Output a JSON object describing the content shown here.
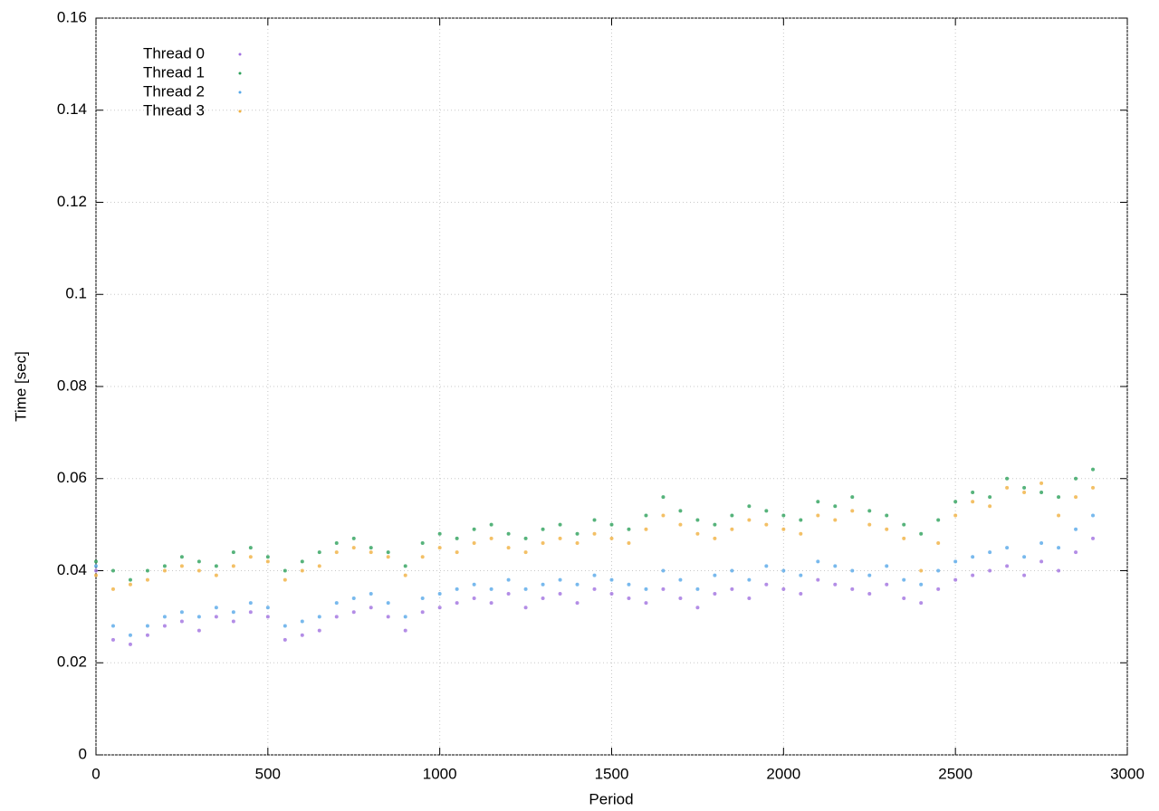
{
  "chart_data": {
    "type": "scatter",
    "xlabel": "Period",
    "ylabel": "Time [sec]",
    "xlim": [
      0,
      3000
    ],
    "ylim": [
      0,
      0.16
    ],
    "xticks": [
      0,
      500,
      1000,
      1500,
      2000,
      2500,
      3000
    ],
    "yticks": [
      0,
      0.02,
      0.04,
      0.06,
      0.08,
      0.1,
      0.12,
      0.14,
      0.16
    ],
    "grid": true,
    "legend": "upper left",
    "x": [
      0,
      50,
      100,
      150,
      200,
      250,
      300,
      350,
      400,
      450,
      500,
      550,
      600,
      650,
      700,
      750,
      800,
      850,
      900,
      950,
      1000,
      1050,
      1100,
      1150,
      1200,
      1250,
      1300,
      1350,
      1400,
      1450,
      1500,
      1550,
      1600,
      1650,
      1700,
      1750,
      1800,
      1850,
      1900,
      1950,
      2000,
      2050,
      2100,
      2150,
      2200,
      2250,
      2300,
      2350,
      2400,
      2450,
      2500,
      2550,
      2600,
      2650,
      2700,
      2750,
      2800,
      2850,
      2900
    ],
    "series": [
      {
        "name": "Thread 0",
        "color": "#a070e0",
        "values": [
          0.04,
          0.025,
          0.024,
          0.026,
          0.028,
          0.029,
          0.027,
          0.03,
          0.029,
          0.031,
          0.03,
          0.025,
          0.026,
          0.027,
          0.03,
          0.031,
          0.032,
          0.03,
          0.027,
          0.031,
          0.032,
          0.033,
          0.034,
          0.033,
          0.035,
          0.032,
          0.034,
          0.035,
          0.033,
          0.036,
          0.035,
          0.034,
          0.033,
          0.036,
          0.034,
          0.032,
          0.035,
          0.036,
          0.034,
          0.037,
          0.036,
          0.035,
          0.038,
          0.037,
          0.036,
          0.035,
          0.037,
          0.034,
          0.033,
          0.036,
          0.038,
          0.039,
          0.04,
          0.041,
          0.039,
          0.042,
          0.04,
          0.044,
          0.047
        ]
      },
      {
        "name": "Thread 1",
        "color": "#2ca05a",
        "values": [
          0.042,
          0.04,
          0.038,
          0.04,
          0.041,
          0.043,
          0.042,
          0.041,
          0.044,
          0.045,
          0.043,
          0.04,
          0.042,
          0.044,
          0.046,
          0.047,
          0.045,
          0.044,
          0.041,
          0.046,
          0.048,
          0.047,
          0.049,
          0.05,
          0.048,
          0.047,
          0.049,
          0.05,
          0.048,
          0.051,
          0.05,
          0.049,
          0.052,
          0.056,
          0.053,
          0.051,
          0.05,
          0.052,
          0.054,
          0.053,
          0.052,
          0.051,
          0.055,
          0.054,
          0.056,
          0.053,
          0.052,
          0.05,
          0.048,
          0.051,
          0.055,
          0.057,
          0.056,
          0.06,
          0.058,
          0.057,
          0.056,
          0.06,
          0.062
        ]
      },
      {
        "name": "Thread 2",
        "color": "#56a8e8",
        "values": [
          0.041,
          0.028,
          0.026,
          0.028,
          0.03,
          0.031,
          0.03,
          0.032,
          0.031,
          0.033,
          0.032,
          0.028,
          0.029,
          0.03,
          0.033,
          0.034,
          0.035,
          0.033,
          0.03,
          0.034,
          0.035,
          0.036,
          0.037,
          0.036,
          0.038,
          0.036,
          0.037,
          0.038,
          0.037,
          0.039,
          0.038,
          0.037,
          0.036,
          0.04,
          0.038,
          0.036,
          0.039,
          0.04,
          0.038,
          0.041,
          0.04,
          0.039,
          0.042,
          0.041,
          0.04,
          0.039,
          0.041,
          0.038,
          0.037,
          0.04,
          0.042,
          0.043,
          0.044,
          0.045,
          0.043,
          0.046,
          0.045,
          0.049,
          0.052
        ]
      },
      {
        "name": "Thread 3",
        "color": "#f0b040",
        "values": [
          0.039,
          0.036,
          0.037,
          0.038,
          0.04,
          0.041,
          0.04,
          0.039,
          0.041,
          0.043,
          0.042,
          0.038,
          0.04,
          0.041,
          0.044,
          0.045,
          0.044,
          0.043,
          0.039,
          0.043,
          0.045,
          0.044,
          0.046,
          0.047,
          0.045,
          0.044,
          0.046,
          0.047,
          0.046,
          0.048,
          0.047,
          0.046,
          0.049,
          0.052,
          0.05,
          0.048,
          0.047,
          0.049,
          0.051,
          0.05,
          0.049,
          0.048,
          0.052,
          0.051,
          0.053,
          0.05,
          0.049,
          0.047,
          0.04,
          0.046,
          0.052,
          0.055,
          0.054,
          0.058,
          0.057,
          0.059,
          0.052,
          0.056,
          0.058
        ]
      }
    ]
  }
}
